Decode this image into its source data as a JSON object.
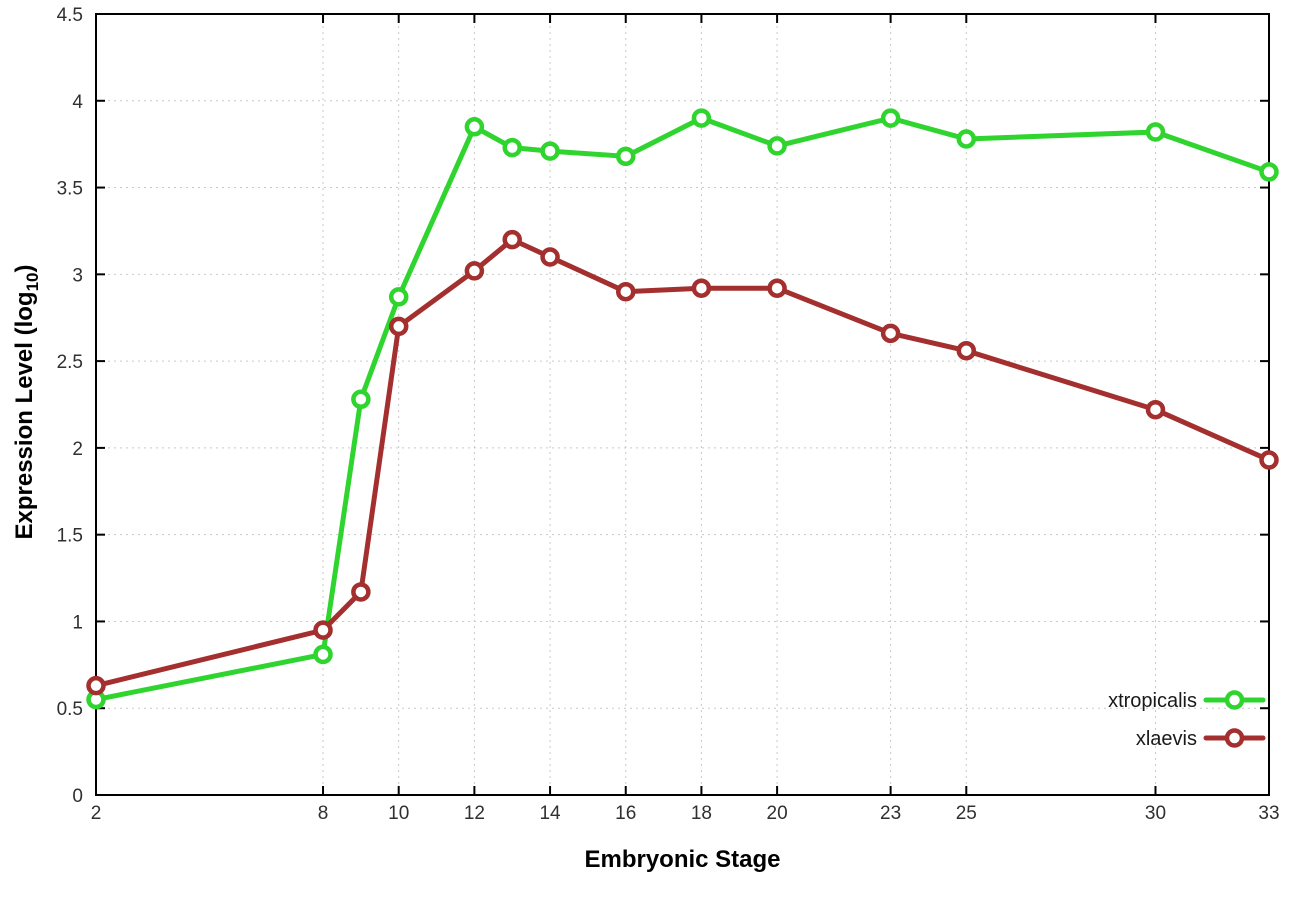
{
  "chart_data": {
    "type": "line",
    "title": "",
    "xlabel": "Embryonic Stage",
    "ylabel": "Expression Level (log10)",
    "ylabel_parts": {
      "pre": "Expression Level (log",
      "sub": "10",
      "post": ")"
    },
    "xlim": [
      2,
      33
    ],
    "ylim": [
      0,
      4.5
    ],
    "xticks": [
      2,
      8,
      10,
      12,
      14,
      16,
      18,
      20,
      23,
      25,
      30,
      33
    ],
    "yticks": [
      0,
      0.5,
      1,
      1.5,
      2,
      2.5,
      3,
      3.5,
      4,
      4.5
    ],
    "ytick_labels": [
      "0",
      "0.5",
      "1",
      "1.5",
      "2",
      "2.5",
      "3",
      "3.5",
      "4",
      "4.5"
    ],
    "grid": true,
    "grid_color": "#c9c9c9",
    "axis_color": "#000000",
    "tick_label_color": "#303030",
    "legend_position": "bottom-right",
    "x": [
      2,
      8,
      9,
      10,
      12,
      13,
      14,
      16,
      18,
      20,
      23,
      25,
      30,
      33
    ],
    "series": [
      {
        "name": "xtropicalis",
        "color": "#2fd42f",
        "values": [
          0.55,
          0.81,
          2.28,
          2.87,
          3.85,
          3.73,
          3.71,
          3.68,
          3.9,
          3.74,
          3.9,
          3.78,
          3.82,
          3.59
        ]
      },
      {
        "name": "xlaevis",
        "color": "#a42f2f",
        "values": [
          0.63,
          0.95,
          1.17,
          2.7,
          3.02,
          3.2,
          3.1,
          2.9,
          2.92,
          2.92,
          2.66,
          2.56,
          2.22,
          1.93
        ]
      }
    ]
  }
}
